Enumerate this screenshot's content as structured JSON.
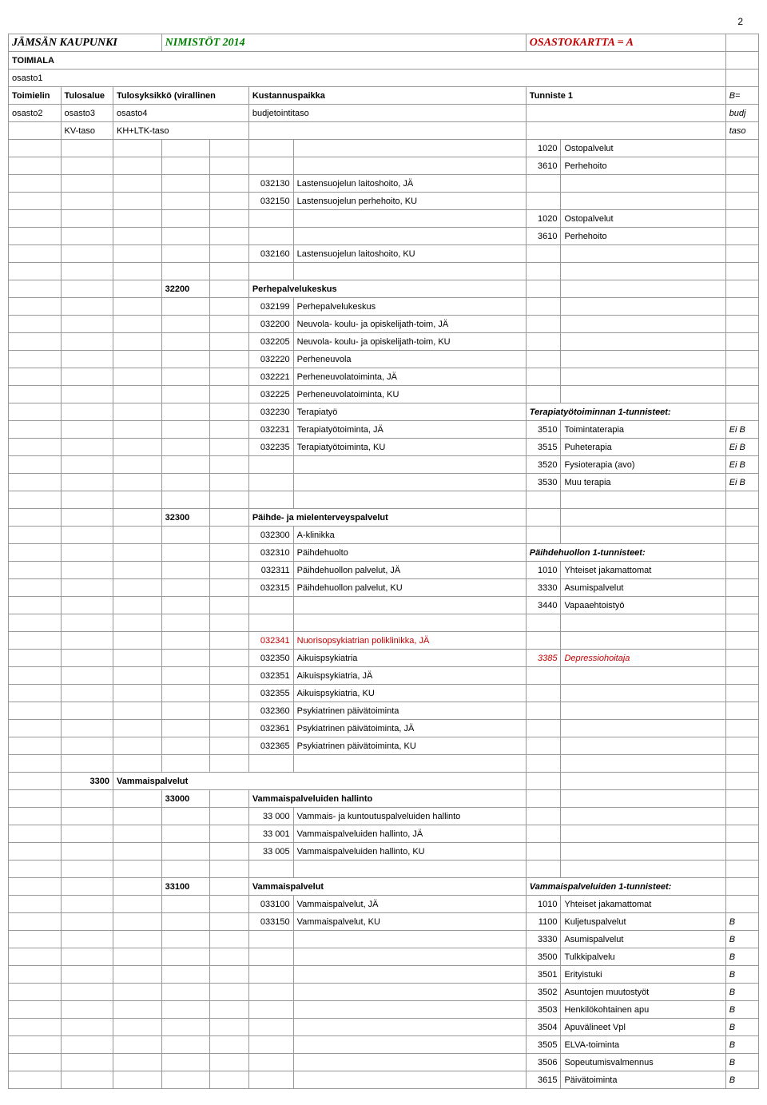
{
  "pageNumber": "2",
  "header": {
    "org": "JÄMSÄN KAUPUNKI",
    "title": "NIMISTÖT 2014",
    "sheet": "OSASTOKARTTA = A"
  },
  "hdrRows": {
    "toimiala": "TOIMIALA",
    "osasto1": "osasto1",
    "toimielin": "Toimielin",
    "tulosalue": "Tulosalue",
    "tulosyk": "Tulosyksikkö (virallinen",
    "kust": "Kustannuspaikka",
    "tunniste": "Tunniste 1",
    "beq": "B=",
    "osasto2": "osasto2",
    "osasto3": "osasto3",
    "osasto4": "osasto4",
    "budjt": "budjetointitaso",
    "budj": "budj",
    "kvtaso": "KV-taso",
    "khltk": "KH+LTK-taso",
    "taso": "taso"
  },
  "s1": {
    "r1_c8": "1020",
    "r1_c9": "Ostopalvelut",
    "r2_c8": "3610",
    "r2_c9": "Perhehoito",
    "r3_c6": "032130",
    "r3_c7": "Lastensuojelun laitoshoito, JÄ",
    "r4_c6": "032150",
    "r4_c7": "Lastensuojelun perhehoito, KU",
    "r5_c8": "1020",
    "r5_c9": "Ostopalvelut",
    "r6_c8": "3610",
    "r6_c9": "Perhehoito",
    "r7_c6": "032160",
    "r7_c7": "Lastensuojelun laitoshoito, KU"
  },
  "s2": {
    "hdr_c4": "32200",
    "hdr_c7": "Perhepalvelukeskus",
    "r1_c6": "032199",
    "r1_c7": "Perhepalvelukeskus",
    "r2_c6": "032200",
    "r2_c7": "Neuvola- koulu- ja opiskelijath-toim, JÄ",
    "r3_c6": "032205",
    "r3_c7": "Neuvola- koulu- ja opiskelijath-toim, KU",
    "r4_c6": "032220",
    "r4_c7": "Perheneuvola",
    "r5_c6": "032221",
    "r5_c7": "Perheneuvolatoiminta, JÄ",
    "r6_c6": "032225",
    "r6_c7": "Perheneuvolatoiminta, KU",
    "r7_c6": "032230",
    "r7_c7": "Terapiatyö",
    "r7_c9": "Terapiatyötoiminnan 1-tunnisteet:",
    "r8_c6": "032231",
    "r8_c7": "Terapiatyötoiminta, JÄ",
    "r8_c8": "3510",
    "r8_c9": "Toimintaterapia",
    "r8_c10": "Ei B",
    "r9_c6": "032235",
    "r9_c7": "Terapiatyötoiminta, KU",
    "r9_c8": "3515",
    "r9_c9": "Puheterapia",
    "r9_c10": "Ei B",
    "r10_c8": "3520",
    "r10_c9": "Fysioterapia (avo)",
    "r10_c10": "Ei B",
    "r11_c8": "3530",
    "r11_c9": "Muu terapia",
    "r11_c10": "Ei B"
  },
  "s3": {
    "hdr_c4": "32300",
    "hdr_c7": "Päihde- ja mielenterveyspalvelut",
    "r1_c6": "032300",
    "r1_c7": "A-klinikka",
    "r2_c6": "032310",
    "r2_c7": "Päihdehuolto",
    "r2_c9": "Päihdehuollon 1-tunnisteet:",
    "r3_c6": "032311",
    "r3_c7": "Päihdehuollon palvelut, JÄ",
    "r3_c8": "1010",
    "r3_c9": "Yhteiset jakamattomat",
    "r4_c6": "032315",
    "r4_c7": "Päihdehuollon palvelut, KU",
    "r4_c8": "3330",
    "r4_c9": "Asumispalvelut",
    "r5_c8": "3440",
    "r5_c9": "Vapaaehtoistyö"
  },
  "s4": {
    "r1_c6": "032341",
    "r1_c7": "Nuorisopsykiatrian poliklinikka, JÄ",
    "r2_c6": "032350",
    "r2_c7": "Aikuispsykiatria",
    "r2_c8": "3385",
    "r2_c9": "Depressiohoitaja",
    "r3_c6": "032351",
    "r3_c7": "Aikuispsykiatria, JÄ",
    "r4_c6": "032355",
    "r4_c7": "Aikuispsykiatria, KU",
    "r5_c6": "032360",
    "r5_c7": "Psykiatrinen päivätoiminta",
    "r6_c6": "032361",
    "r6_c7": "Psykiatrinen päivätoiminta, JÄ",
    "r7_c6": "032365",
    "r7_c7": "Psykiatrinen päivätoiminta, KU"
  },
  "s5": {
    "hdr_c2": "3300",
    "hdr_c3": "Vammaispalvelut",
    "h2_c4": "33000",
    "h2_c7": "Vammaispalveluiden hallinto",
    "r1_c6": "33 000",
    "r1_c7": "Vammais- ja kuntoutuspalveluiden hallinto",
    "r2_c6": "33 001",
    "r2_c7": "Vammaispalveluiden hallinto, JÄ",
    "r3_c6": "33 005",
    "r3_c7": "Vammaispalveluiden hallinto, KU"
  },
  "s6": {
    "hdr_c4": "33100",
    "hdr_c7": "Vammaispalvelut",
    "hdr_c9": "Vammaispalveluiden 1-tunnisteet:",
    "r1_c6": "033100",
    "r1_c7": "Vammaispalvelut, JÄ",
    "r1_c8": "1010",
    "r1_c9": "Yhteiset jakamattomat",
    "r2_c6": "033150",
    "r2_c7": "Vammaispalvelut, KU",
    "r2_c8": "1100",
    "r2_c9": "Kuljetuspalvelut",
    "r2_c10": "B",
    "r3_c8": "3330",
    "r3_c9": "Asumispalvelut",
    "r3_c10": "B",
    "r4_c8": "3500",
    "r4_c9": "Tulkkipalvelu",
    "r4_c10": "B",
    "r5_c8": "3501",
    "r5_c9": "Erityistuki",
    "r5_c10": "B",
    "r6_c8": "3502",
    "r6_c9": "Asuntojen muutostyöt",
    "r6_c10": "B",
    "r7_c8": "3503",
    "r7_c9": "Henkilökohtainen apu",
    "r7_c10": "B",
    "r8_c8": "3504",
    "r8_c9": "Apuvälineet Vpl",
    "r8_c10": "B",
    "r9_c8": "3505",
    "r9_c9": "ELVA-toiminta",
    "r9_c10": "B",
    "r10_c8": "3506",
    "r10_c9": "Sopeutumisvalmennus",
    "r10_c10": "B",
    "r11_c8": "3615",
    "r11_c9": "Päivätoiminta",
    "r11_c10": "B"
  }
}
